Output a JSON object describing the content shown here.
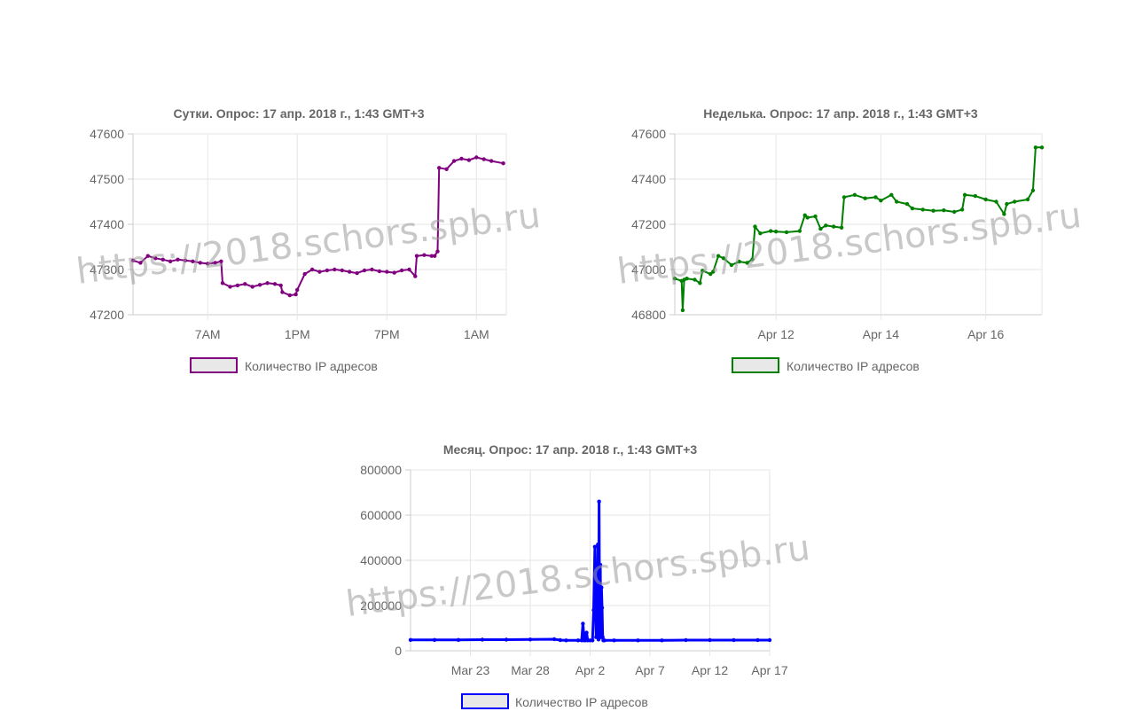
{
  "chart_data": [
    {
      "type": "line",
      "title": "Сутки. Опрос: 17 апр. 2018 г., 1:43 GMT+3",
      "xlabel": "",
      "ylabel": "",
      "ylim": [
        47200,
        47600
      ],
      "yticks": [
        "47200",
        "47300",
        "47400",
        "47500",
        "47600"
      ],
      "xtick_labels": [
        "7AM",
        "1PM",
        "7PM",
        "1AM"
      ],
      "xtick_values": [
        7,
        13,
        19,
        25
      ],
      "xlim": [
        2,
        27
      ],
      "grid": true,
      "legend_position": "bottom",
      "color": "#800080",
      "series": [
        {
          "name": "Количество IP адресов",
          "x": [
            2.0,
            2.5,
            3.0,
            3.5,
            4.0,
            4.5,
            5.0,
            5.5,
            6.0,
            6.5,
            7.0,
            7.5,
            7.9,
            8.0,
            8.5,
            9.0,
            9.5,
            10.0,
            10.5,
            11.0,
            11.5,
            11.9,
            12.0,
            12.5,
            12.9,
            13.0,
            13.5,
            14.0,
            14.5,
            15.0,
            15.5,
            16.0,
            16.5,
            17.0,
            17.5,
            18.0,
            18.5,
            19.0,
            19.5,
            20.0,
            20.5,
            20.9,
            21.0,
            21.5,
            22.0,
            22.2,
            22.4,
            22.5,
            23.0,
            23.5,
            24.0,
            24.5,
            25.0,
            25.5,
            26.0,
            26.8
          ],
          "y": [
            47320,
            47315,
            47330,
            47325,
            47322,
            47318,
            47322,
            47320,
            47318,
            47315,
            47313,
            47315,
            47318,
            47270,
            47262,
            47265,
            47268,
            47262,
            47266,
            47270,
            47268,
            47265,
            47250,
            47243,
            47245,
            47255,
            47290,
            47300,
            47295,
            47298,
            47300,
            47298,
            47295,
            47292,
            47298,
            47300,
            47296,
            47295,
            47293,
            47298,
            47300,
            47285,
            47330,
            47332,
            47330,
            47330,
            47340,
            47525,
            47522,
            47540,
            47545,
            47542,
            47548,
            47544,
            47540,
            47535
          ]
        }
      ]
    },
    {
      "type": "line",
      "title": "Неделька. Опрос: 17 апр. 2018 г., 1:43 GMT+3",
      "xlabel": "",
      "ylabel": "",
      "ylim": [
        46800,
        47600
      ],
      "yticks": [
        "46800",
        "47000",
        "47200",
        "47400",
        "47600"
      ],
      "xtick_labels": [
        "Apr 12",
        "Apr 14",
        "Apr 16"
      ],
      "xtick_values": [
        12,
        14,
        16
      ],
      "xlim": [
        10.07,
        17.07
      ],
      "grid": true,
      "legend_position": "bottom",
      "color": "#008000",
      "series": [
        {
          "name": "Количество IP адресов",
          "x": [
            10.07,
            10.2,
            10.22,
            10.25,
            10.3,
            10.45,
            10.55,
            10.6,
            10.75,
            10.8,
            10.9,
            11.0,
            11.15,
            11.3,
            11.45,
            11.55,
            11.6,
            11.7,
            11.9,
            12.0,
            12.2,
            12.45,
            12.55,
            12.6,
            12.75,
            12.85,
            12.95,
            13.1,
            13.25,
            13.3,
            13.5,
            13.7,
            13.9,
            14.0,
            14.2,
            14.3,
            14.5,
            14.6,
            14.8,
            15.0,
            15.2,
            15.4,
            15.55,
            15.6,
            15.8,
            16.0,
            16.2,
            16.35,
            16.4,
            16.55,
            16.8,
            16.9,
            16.95,
            17.07
          ],
          "y": [
            46960,
            46950,
            46820,
            46955,
            46960,
            46955,
            46940,
            46995,
            46980,
            46990,
            47060,
            47050,
            47020,
            47035,
            47030,
            47045,
            47190,
            47160,
            47170,
            47168,
            47165,
            47170,
            47240,
            47230,
            47235,
            47180,
            47195,
            47190,
            47185,
            47320,
            47330,
            47315,
            47320,
            47305,
            47330,
            47300,
            47290,
            47270,
            47265,
            47260,
            47262,
            47255,
            47265,
            47330,
            47325,
            47310,
            47300,
            47245,
            47290,
            47300,
            47310,
            47350,
            47540,
            47540
          ]
        }
      ]
    },
    {
      "type": "line",
      "title": "Месяц. Опрос: 17 апр. 2018 г., 1:43 GMT+3",
      "xlabel": "",
      "ylabel": "",
      "ylim": [
        0,
        800000
      ],
      "yticks": [
        "0",
        "200000",
        "400000",
        "600000",
        "800000"
      ],
      "xtick_labels": [
        "Mar 23",
        "Mar 28",
        "Apr 2",
        "Apr 7",
        "Apr 12",
        "Apr 17"
      ],
      "xtick_values": [
        23,
        28,
        33,
        38,
        43,
        48
      ],
      "xlim": [
        18,
        48
      ],
      "grid": true,
      "legend_position": "bottom",
      "color": "#0000ff",
      "series": [
        {
          "name": "Количество IP адресов",
          "x": [
            18.0,
            20.0,
            22.0,
            24.0,
            26.0,
            28.0,
            30.0,
            30.5,
            31.0,
            32.0,
            32.3,
            32.4,
            32.5,
            32.6,
            32.7,
            32.8,
            33.0,
            33.2,
            33.3,
            33.4,
            33.5,
            33.55,
            33.6,
            33.65,
            33.7,
            33.75,
            33.8,
            33.85,
            33.9,
            33.95,
            34.0,
            34.05,
            34.1,
            34.2,
            35.0,
            37.0,
            39.0,
            41.0,
            43.0,
            45.0,
            47.0,
            48.0
          ],
          "y": [
            48000,
            48000,
            48000,
            49000,
            49000,
            50000,
            51000,
            47000,
            46000,
            46000,
            46000,
            120000,
            46000,
            46000,
            80000,
            46000,
            46000,
            46000,
            180000,
            460000,
            60000,
            350000,
            80000,
            470000,
            50000,
            660000,
            70000,
            380000,
            60000,
            280000,
            190000,
            60000,
            46000,
            46000,
            46000,
            46000,
            46000,
            47000,
            47000,
            47000,
            47000,
            47000
          ]
        }
      ]
    }
  ],
  "watermark": "https://2018.schors.spb.ru"
}
